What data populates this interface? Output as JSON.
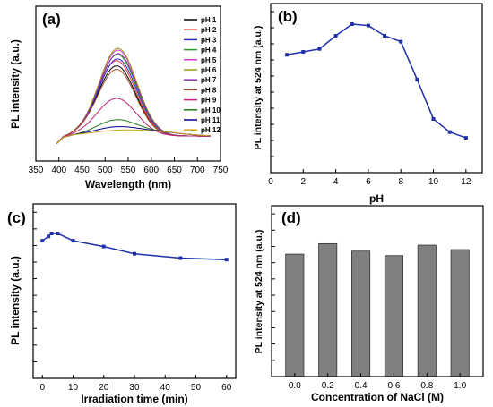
{
  "chart_data": [
    {
      "panel": "(a)",
      "type": "line",
      "xlabel": "Wavelength (nm)",
      "ylabel": "PL intensity (a.u.)",
      "xlim": [
        350,
        750
      ],
      "ylim": [
        0,
        1
      ],
      "xticks": [
        350,
        400,
        450,
        500,
        550,
        600,
        650,
        700,
        750
      ],
      "legend_position": "right",
      "series": [
        {
          "name": "pH 1",
          "color": "#000000",
          "peak": 0.8,
          "center": 525,
          "width": 58
        },
        {
          "name": "pH 2",
          "color": "#e8383a",
          "peak": 0.86,
          "center": 525,
          "width": 58
        },
        {
          "name": "pH 3",
          "color": "#2b2bd4",
          "peak": 0.88,
          "center": 527,
          "width": 58
        },
        {
          "name": "pH 4",
          "color": "#2a9a2a",
          "peak": 0.93,
          "center": 527,
          "width": 58
        },
        {
          "name": "pH 5",
          "color": "#d23ad2",
          "peak": 0.98,
          "center": 528,
          "width": 58
        },
        {
          "name": "pH 6",
          "color": "#9a9a1a",
          "peak": 1.0,
          "center": 528,
          "width": 58
        },
        {
          "name": "pH 7",
          "color": "#8a2ab0",
          "peak": 0.94,
          "center": 528,
          "width": 58
        },
        {
          "name": "pH 8",
          "color": "#a0522d",
          "peak": 0.76,
          "center": 525,
          "width": 58
        },
        {
          "name": "pH 9",
          "color": "#c0207a",
          "peak": 0.43,
          "center": 525,
          "width": 60
        },
        {
          "name": "pH 10",
          "color": "#1c7a1c",
          "peak": 0.18,
          "center": 525,
          "width": 62
        },
        {
          "name": "pH 11",
          "color": "#00008b",
          "peak": 0.1,
          "center": 525,
          "width": 70
        },
        {
          "name": "pH 12",
          "color": "#d4a017",
          "peak": 0.06,
          "center": 525,
          "width": 80
        }
      ]
    },
    {
      "panel": "(b)",
      "type": "line",
      "xlabel": "pH",
      "ylabel": "PL intensity at 524 nm (a.u.)",
      "xlim": [
        0,
        13
      ],
      "xticks": [
        0,
        2,
        4,
        6,
        8,
        10,
        12
      ],
      "ylim": [
        0,
        1.05
      ],
      "color": "#1f2fa8",
      "x": [
        1,
        2,
        3,
        4,
        5,
        6,
        7,
        8,
        9,
        10,
        11,
        12
      ],
      "y": [
        0.79,
        0.81,
        0.83,
        0.92,
        1.0,
        0.99,
        0.92,
        0.88,
        0.62,
        0.35,
        0.26,
        0.22
      ]
    },
    {
      "panel": "(c)",
      "type": "line",
      "xlabel": "Irradiation time (min)",
      "ylabel": "PL intensity (a.u.)",
      "xlim": [
        -3,
        63
      ],
      "xticks": [
        0,
        10,
        20,
        30,
        40,
        50,
        60
      ],
      "ylim": [
        0,
        1.1
      ],
      "color": "#1f2fa8",
      "x": [
        0,
        2,
        3,
        5,
        10,
        20,
        30,
        45,
        60
      ],
      "y": [
        0.95,
        0.98,
        1.0,
        1.0,
        0.95,
        0.91,
        0.86,
        0.83,
        0.82
      ]
    },
    {
      "panel": "(d)",
      "type": "bar",
      "xlabel": "Concentration of NaCl (M)",
      "ylabel": "PL intensity  at 524 nm (a.u.)",
      "categories": [
        "0.0",
        "0.2",
        "0.4",
        "0.6",
        "0.8",
        "1.0"
      ],
      "values": [
        0.82,
        0.89,
        0.84,
        0.81,
        0.88,
        0.85
      ],
      "ylim": [
        0,
        1.1
      ],
      "color": "#808080"
    }
  ]
}
